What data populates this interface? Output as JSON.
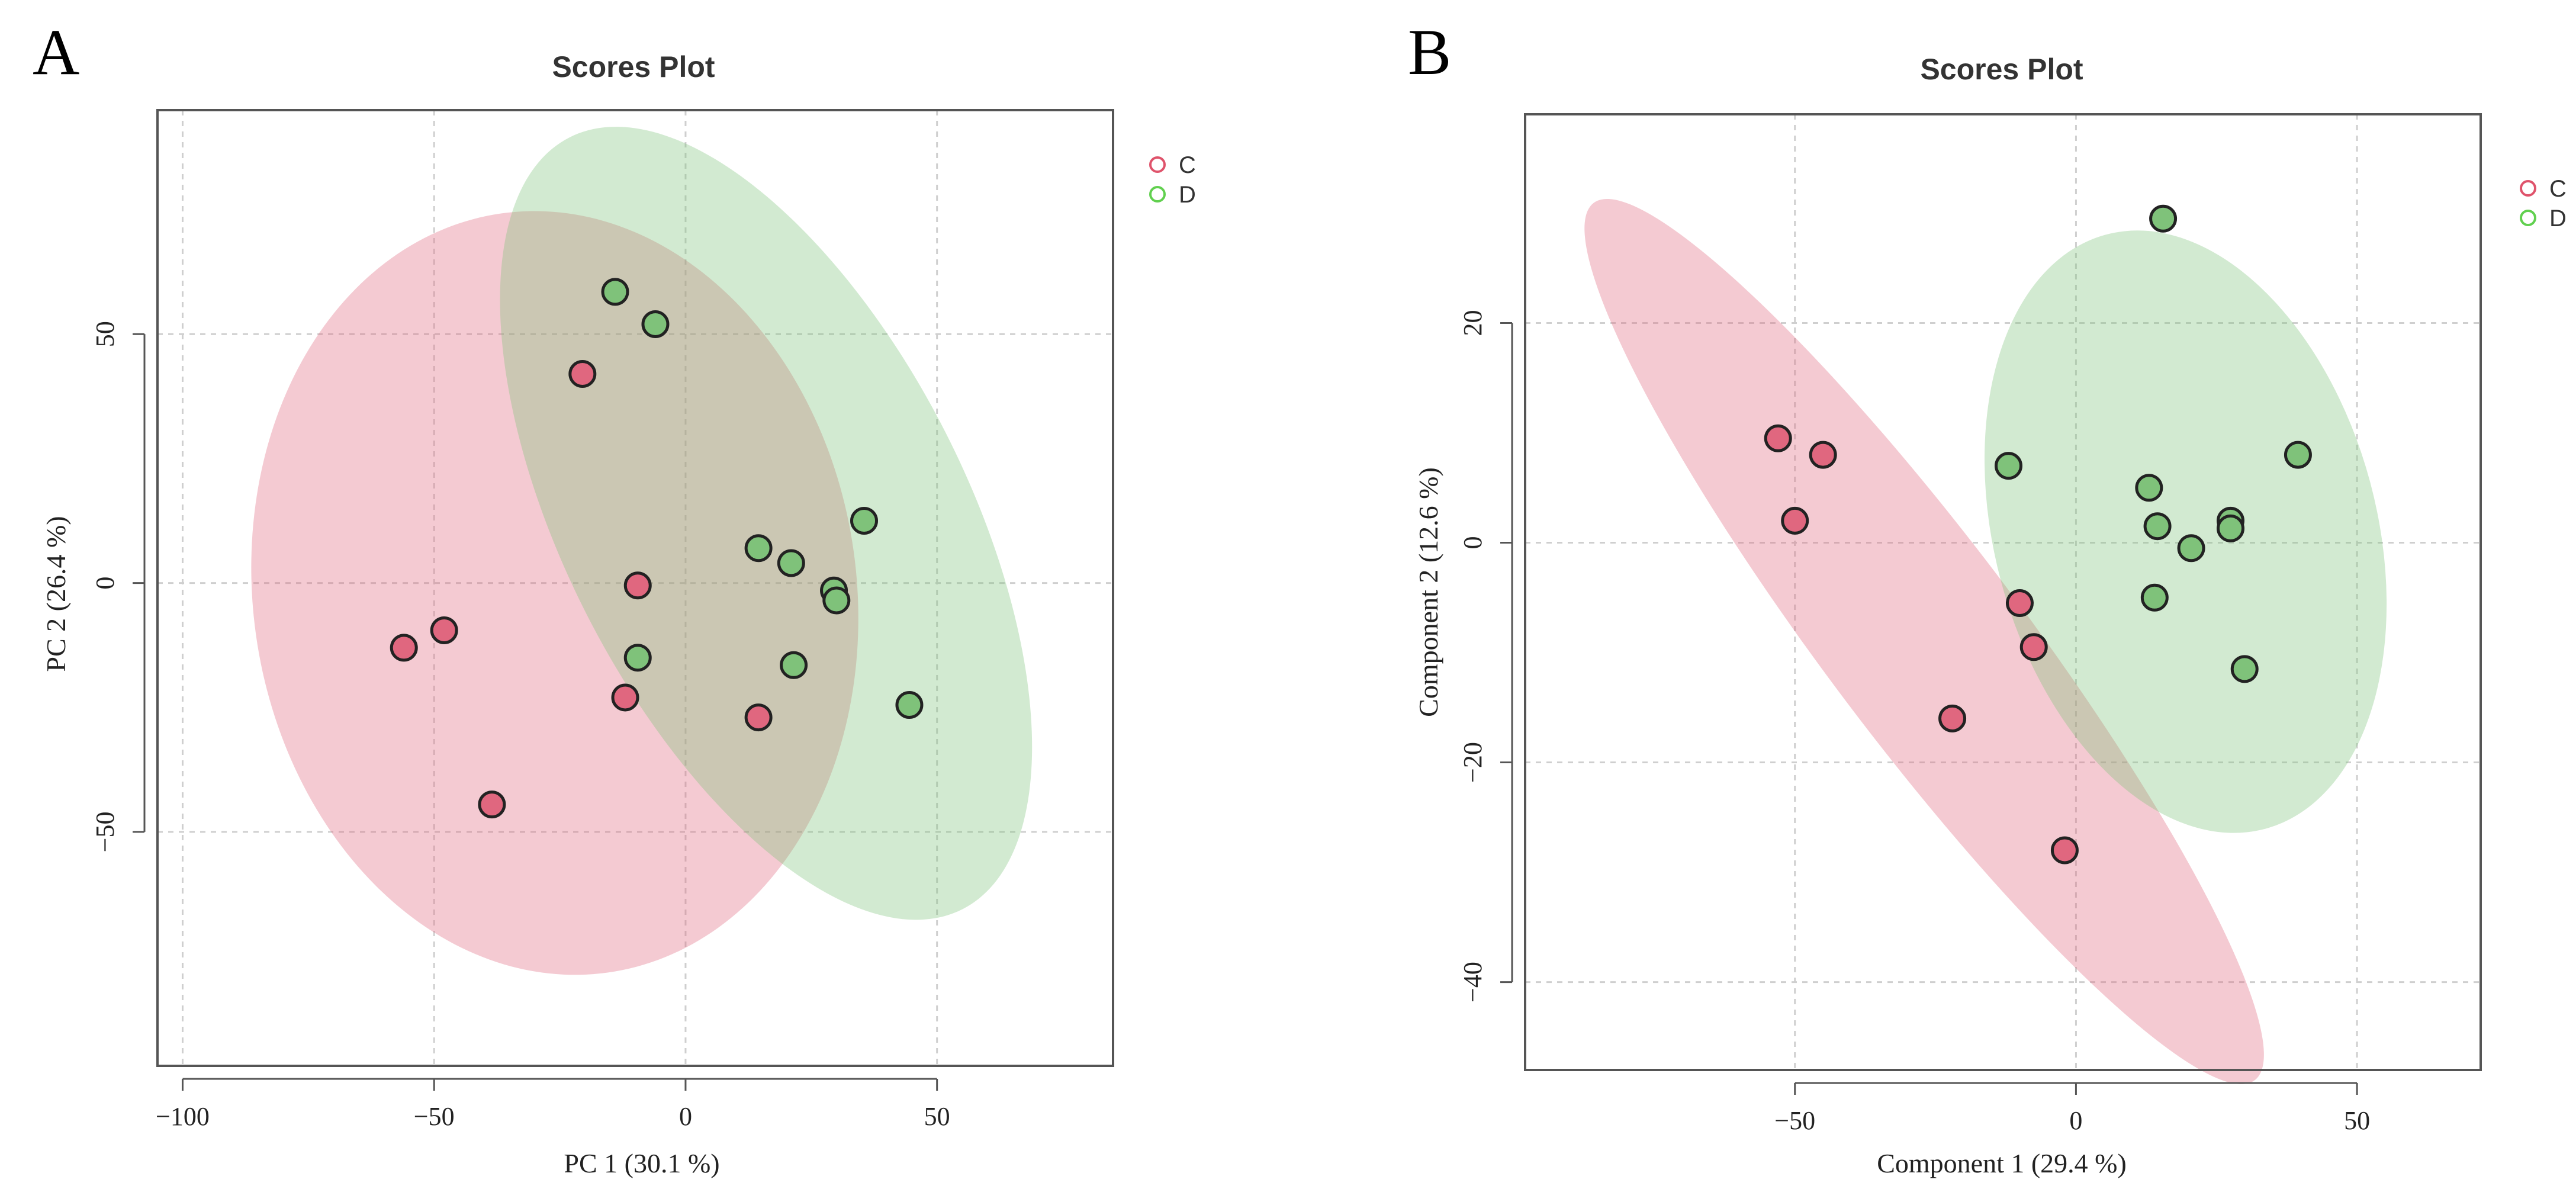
{
  "panels": [
    {
      "letter": "A",
      "chart_data": {
        "type": "scatter",
        "title": "Scores Plot",
        "xlabel": "PC 1 (30.1 %)",
        "ylabel": "PC 2 (26.4 %)",
        "xlim": [
          -105,
          85
        ],
        "ylim": [
          -97,
          95
        ],
        "xticks": [
          -100,
          -50,
          0,
          50
        ],
        "yticks": [
          -50,
          0,
          50
        ],
        "xtick_labels": [
          "−100",
          "−50",
          "0",
          "50"
        ],
        "ytick_labels": [
          "−50",
          "0",
          "50"
        ],
        "grid": true,
        "legend_position": "top-right",
        "series": [
          {
            "name": "C",
            "color": "#df536b",
            "fill": "#e0677f",
            "points": [
              [
                -56,
                -13
              ],
              [
                -48,
                -9.5
              ],
              [
                -38.5,
                -44.5
              ],
              [
                -20.5,
                42
              ],
              [
                -12,
                -23
              ],
              [
                -9.5,
                -0.5
              ],
              [
                14.5,
                -27
              ]
            ],
            "ellipse": {
              "cx": -26,
              "cy": -2,
              "rx": 60,
              "ry": 77,
              "angle": -8
            }
          },
          {
            "name": "D",
            "color": "#61d04f",
            "fill": "#7fc27a",
            "points": [
              [
                -14,
                58.5
              ],
              [
                -6,
                52
              ],
              [
                -9.5,
                -15
              ],
              [
                14.5,
                7
              ],
              [
                21,
                4
              ],
              [
                21.5,
                -16.5
              ],
              [
                29.5,
                -1.5
              ],
              [
                30,
                -3.5
              ],
              [
                35.5,
                12.5
              ],
              [
                44.5,
                -24.5
              ]
            ],
            "ellipse": {
              "cx": 16,
              "cy": 12,
              "rx": 40,
              "ry": 87,
              "angle": -27
            }
          }
        ]
      }
    },
    {
      "letter": "B",
      "chart_data": {
        "type": "scatter",
        "title": "Scores Plot",
        "xlabel": "Component 1 (29.4 %)",
        "ylabel": "Component 2 (12.6 %)",
        "xlim": [
          -98,
          72
        ],
        "ylim": [
          -48,
          39
        ],
        "xticks": [
          -50,
          0,
          50
        ],
        "yticks": [
          -40,
          -20,
          0,
          20
        ],
        "xtick_labels": [
          "−50",
          "0",
          "50"
        ],
        "ytick_labels": [
          "−40",
          "−20",
          "0",
          "20"
        ],
        "grid": true,
        "legend_position": "top-right",
        "series": [
          {
            "name": "C",
            "color": "#df536b",
            "fill": "#e0677f",
            "points": [
              [
                -53,
                9.5
              ],
              [
                -45,
                8
              ],
              [
                -50,
                2
              ],
              [
                -10,
                -5.5
              ],
              [
                -7.5,
                -9.5
              ],
              [
                -22,
                -16
              ],
              [
                -2,
                -28
              ]
            ],
            "ellipse": {
              "cx": -27,
              "cy": -9,
              "rx": 17.5,
              "ry": 50,
              "angle": -37
            }
          },
          {
            "name": "D",
            "color": "#61d04f",
            "fill": "#7fc27a",
            "points": [
              [
                15.5,
                29.5
              ],
              [
                -12,
                7
              ],
              [
                13,
                5
              ],
              [
                14.5,
                1.5
              ],
              [
                20.5,
                -0.5
              ],
              [
                27.5,
                2
              ],
              [
                27.5,
                1.3
              ],
              [
                39.5,
                8
              ],
              [
                14,
                -5
              ],
              [
                30,
                -11.5
              ]
            ],
            "ellipse": {
              "cx": 19.5,
              "cy": 1,
              "rx": 34,
              "ry": 28,
              "angle": -15
            }
          }
        ]
      }
    }
  ]
}
